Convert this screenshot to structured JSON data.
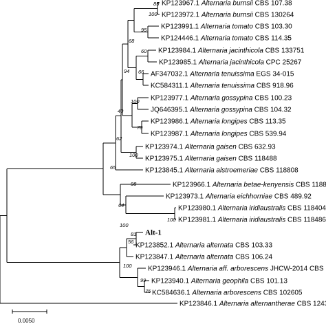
{
  "tree": {
    "taxa": [
      {
        "accession": "KP123967.1",
        "species": "Alternaria burnsii",
        "strain": "CBS 107.38"
      },
      {
        "accession": "KP123972.1",
        "species": "Alternaria burnsii",
        "strain": "CBS 130264"
      },
      {
        "accession": "KP123991.1",
        "species": "Alternaria tomato",
        "strain": "CBS 103.30"
      },
      {
        "accession": "KP124446.1",
        "species": "Alternaria tomato",
        "strain": "CBS 114.35"
      },
      {
        "accession": "KP123984.1",
        "species": "Alternaria jacinthicola",
        "strain": "CBS 133751"
      },
      {
        "accession": "KP123985.1",
        "species": "Alternaria jacinthicola",
        "strain": "CPC 25267"
      },
      {
        "accession": "AF347032.1",
        "species": "Alternaria tenuissima",
        "strain": "EGS 34-015"
      },
      {
        "accession": "KC584311.1",
        "species": "Alternaria tenuissima",
        "strain": "CBS 918.96"
      },
      {
        "accession": "KP123977.1",
        "species": "Alternaria gossypina",
        "strain": "CBS 100.23"
      },
      {
        "accession": "JQ646395.1",
        "species": "Alternaria gossypina",
        "strain": "CBS 104.32"
      },
      {
        "accession": "KP123986.1",
        "species": "Alternaria longipes",
        "strain": "CBS 113.35"
      },
      {
        "accession": "KP123987.1",
        "species": "Alternaria longipes",
        "strain": "CBS 539.94"
      },
      {
        "accession": "KP123974.1",
        "species": "Alternaria gaisen",
        "strain": "CBS 632.93"
      },
      {
        "accession": "KP123975.1",
        "species": "Alternaria gaisen",
        "strain": "CBS 118488"
      },
      {
        "accession": "KP123845.1",
        "species": "Alternaria alstroemeriae",
        "strain": "CBS 118808"
      },
      {
        "accession": "KP123966.1",
        "species": "Alternaria betae-kenyensis",
        "strain": "CBS 1188"
      },
      {
        "accession": "KP123973.1",
        "species": "Alternaria eichhorniae",
        "strain": "CBS 489.92"
      },
      {
        "accession": "KP123980.1",
        "species": "Alternaria iridiaustralis",
        "strain": "CBS 118404"
      },
      {
        "accession": "KP123981.1",
        "species": "Alternaria iridiaustralis",
        "strain": "CBS 118486"
      },
      {
        "accession": "",
        "species": "",
        "strain": "",
        "label": "Alt-1",
        "bold": true
      },
      {
        "accession": "KP123852.1",
        "species": "Alternaria alternata",
        "strain": "CBS 103.33"
      },
      {
        "accession": "KP123847.1",
        "species": "Alternaria alternata",
        "strain": "CBS 106.24"
      },
      {
        "accession": "KP123946.1",
        "species": "Alternaria aff. arborescens",
        "strain": "JHCW-2014 CBS"
      },
      {
        "accession": "KP123940.1",
        "species": "Alternaria geophila",
        "strain": "CBS 101.13"
      },
      {
        "accession": "KC584636.1",
        "species": "Alternaria arborescens",
        "strain": "CBS 102605"
      },
      {
        "accession": "KP123846.1",
        "species": "Alternaria alternantherae",
        "strain": "CBS 1243"
      }
    ],
    "support_values": [
      "85",
      "100",
      "95",
      "68",
      "60",
      "94",
      "66",
      "40",
      "100",
      "70",
      "62",
      "100",
      "65",
      "98",
      "100",
      "64",
      "100",
      "81",
      "56",
      "100",
      "99",
      "75"
    ]
  },
  "scale_bar": {
    "label": "0.0050"
  }
}
